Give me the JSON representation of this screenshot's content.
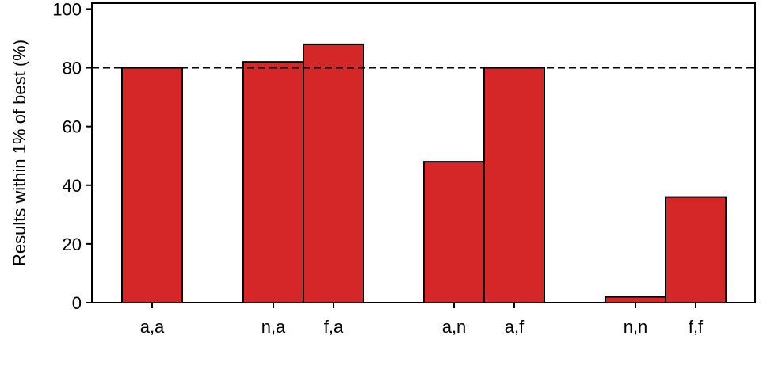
{
  "chart_data": {
    "type": "bar",
    "title": "",
    "xlabel": "",
    "ylabel": "Results within 1% of best (%)",
    "ylim": [
      0,
      102
    ],
    "yticks": [
      0,
      20,
      40,
      60,
      80,
      100
    ],
    "categories": [
      "a,a",
      "n,a",
      "f,a",
      "a,n",
      "a,f",
      "n,n",
      "f,f"
    ],
    "values": [
      80,
      82,
      88,
      48,
      80,
      2,
      36
    ],
    "reference_line": {
      "y": 80,
      "style": "dashed",
      "color": "#000000"
    },
    "bar_color": "#d62728",
    "bar_edge_color": "#000000",
    "grid": false,
    "legend": "none"
  }
}
